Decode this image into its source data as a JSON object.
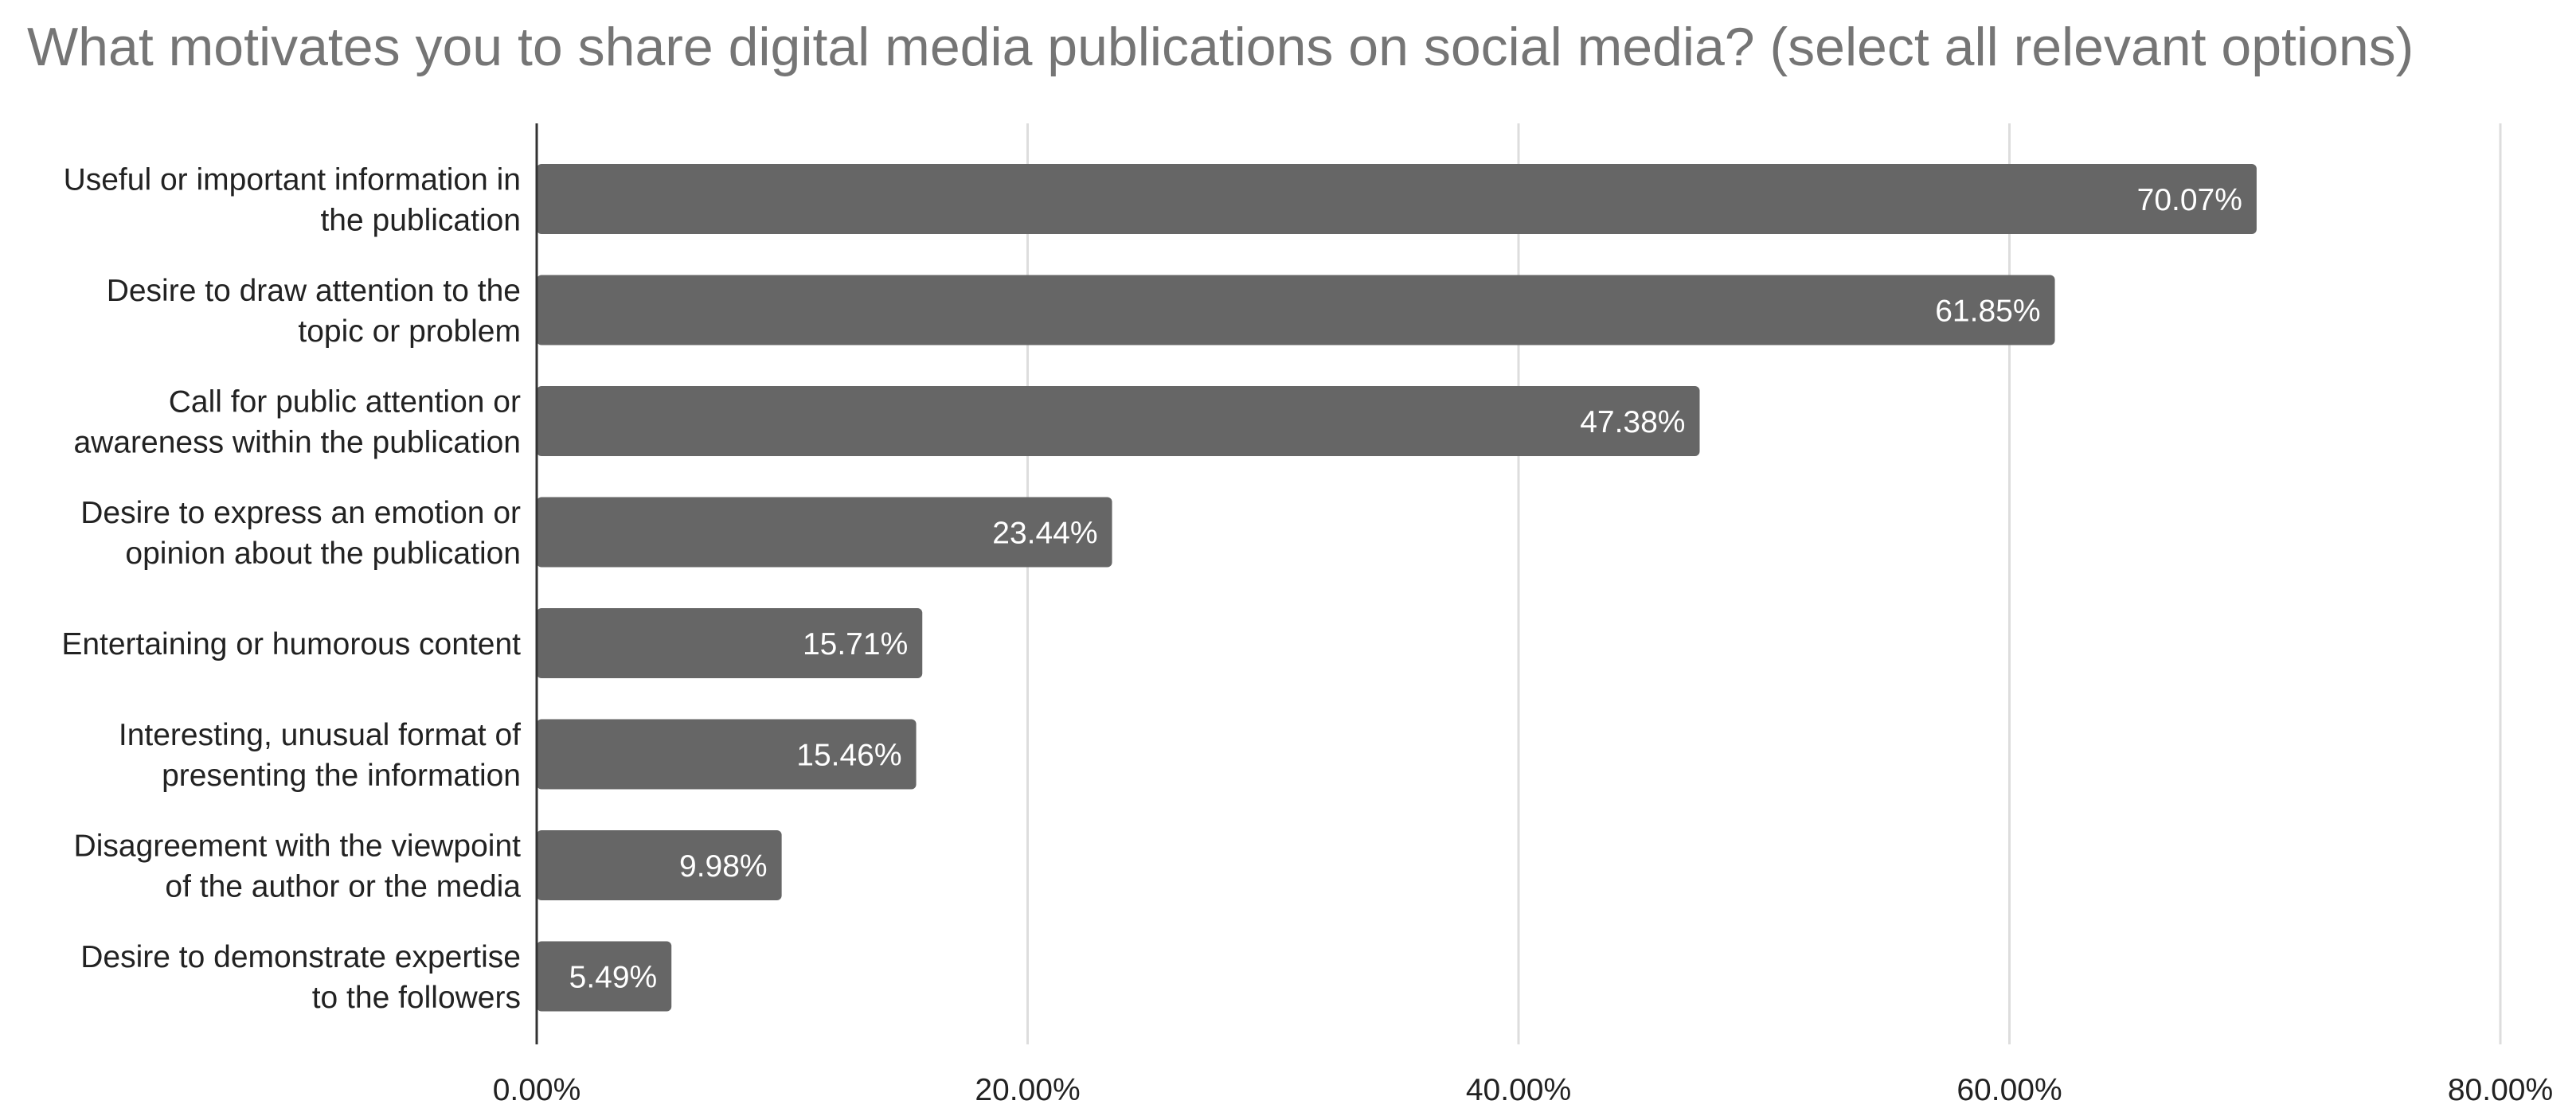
{
  "chart_data": {
    "type": "bar",
    "orientation": "horizontal",
    "title": "What motivates you to share digital media publications on social media? (select all relevant options)",
    "categories": [
      [
        "Useful or important information in",
        "the publication"
      ],
      [
        "Desire to draw attention to the",
        "topic or problem"
      ],
      [
        "Call for public attention or",
        "awareness within the publication"
      ],
      [
        "Desire to express an emotion or",
        "opinion about the publication"
      ],
      [
        "Entertaining or humorous content"
      ],
      [
        "Interesting, unusual format of",
        "presenting the information"
      ],
      [
        "Disagreement with the viewpoint",
        "of the author or the media"
      ],
      [
        "Desire to demonstrate expertise",
        "to the followers"
      ]
    ],
    "values": [
      70.07,
      61.85,
      47.38,
      23.44,
      15.71,
      15.46,
      9.98,
      5.49
    ],
    "value_labels": [
      "70.07%",
      "61.85%",
      "47.38%",
      "23.44%",
      "15.71%",
      "15.46%",
      "9.98%",
      "5.49%"
    ],
    "xlim": [
      0,
      80
    ],
    "x_ticks": [
      0,
      20,
      40,
      60,
      80
    ],
    "x_tick_labels": [
      "0.00%",
      "20.00%",
      "40.00%",
      "60.00%",
      "80.00%"
    ],
    "grid": true,
    "legend": "none",
    "bar_color": "#666666",
    "grid_color": "#dddddd",
    "axis_color": "#333333"
  }
}
